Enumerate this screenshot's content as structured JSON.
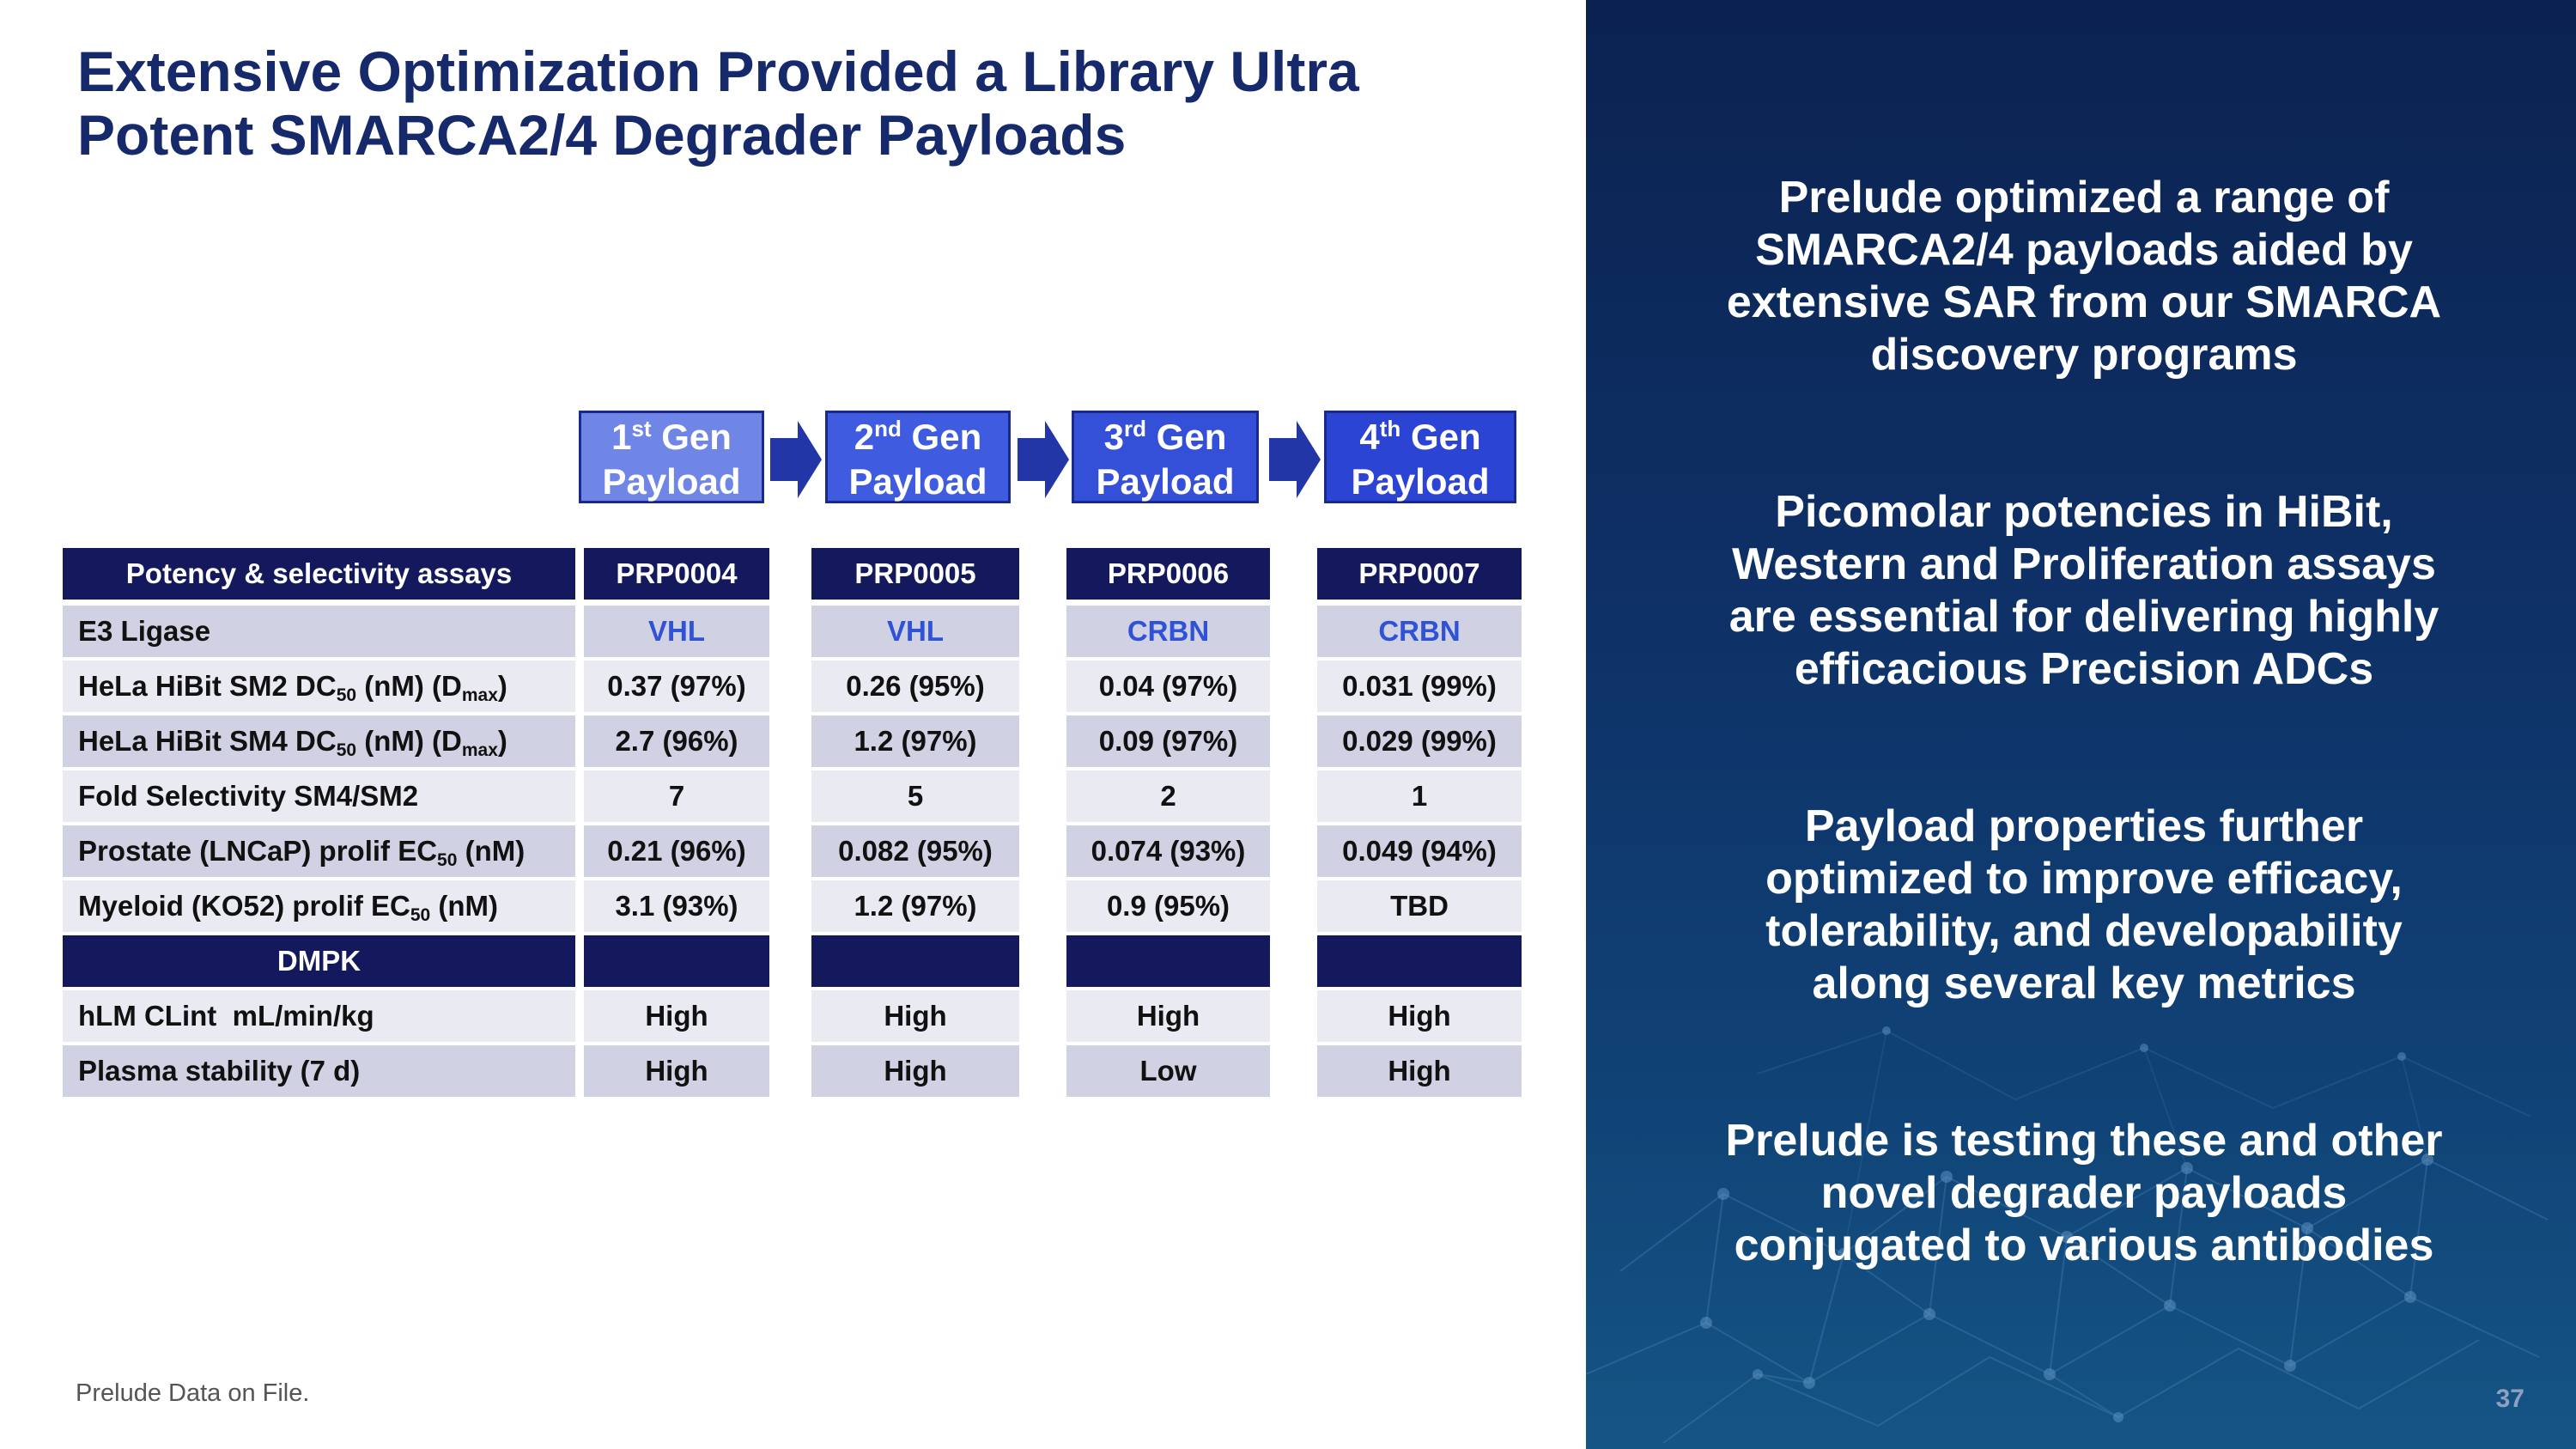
{
  "title": {
    "line1": "Extensive Optimization Provided a Library Ultra",
    "line2": "Potent SMARCA2/4 Degrader Payloads"
  },
  "generations": [
    {
      "ord": "1",
      "sup": "st",
      "gen": "Gen",
      "payload": "Payload",
      "fill": "#6f86e6"
    },
    {
      "ord": "2",
      "sup": "nd",
      "gen": "Gen",
      "payload": "Payload",
      "fill": "#3f5ce0"
    },
    {
      "ord": "3",
      "sup": "rd",
      "gen": "Gen",
      "payload": "Payload",
      "fill": "#3550d8"
    },
    {
      "ord": "4",
      "sup": "th",
      "gen": "Gen",
      "payload": "Payload",
      "fill": "#2c44d4"
    }
  ],
  "table": {
    "header_label": "Potency & selectivity assays",
    "compounds": [
      "PRP0004",
      "PRP0005",
      "PRP0006",
      "PRP0007"
    ],
    "e3": {
      "label": "E3 Ligase",
      "values": [
        "VHL",
        "VHL",
        "CRBN",
        "CRBN"
      ]
    },
    "sm2": {
      "pre": "HeLa HiBit SM2 DC",
      "sub": "50",
      "mid": " (nM) (D",
      "sub2": "max",
      "post": ")",
      "values": [
        "0.37 (97%)",
        "0.26 (95%)",
        "0.04 (97%)",
        "0.031 (99%)"
      ]
    },
    "sm4": {
      "pre": "HeLa HiBit SM4 DC",
      "sub": "50",
      "mid": " (nM) (D",
      "sub2": "max",
      "post": ")",
      "values": [
        "2.7 (96%)",
        "1.2 (97%)",
        "0.09 (97%)",
        "0.029 (99%)"
      ]
    },
    "fold": {
      "label": "Fold Selectivity SM4/SM2",
      "values": [
        "7",
        "5",
        "2",
        "1"
      ]
    },
    "prostate": {
      "pre": "Prostate (LNCaP) prolif EC",
      "sub": "50",
      "post": " (nM)",
      "values": [
        "0.21 (96%)",
        "0.082 (95%)",
        "0.074 (93%)",
        "0.049 (94%)"
      ]
    },
    "myeloid": {
      "pre": "Myeloid (KO52) prolif EC",
      "sub": "50",
      "post": " (nM)",
      "values": [
        "3.1 (93%)",
        "1.2 (97%)",
        "0.9 (95%)",
        "TBD"
      ]
    },
    "dmpk_label": "DMPK",
    "hlm": {
      "label": "hLM CLint  mL/min/kg",
      "values": [
        "High",
        "High",
        "High",
        "High"
      ]
    },
    "plasma": {
      "label": "Plasma stability (7 d)",
      "values": [
        "High",
        "High",
        "Low",
        "High"
      ]
    }
  },
  "footnote": "Prelude Data on File.",
  "bullets": [
    {
      "lines": [
        "Prelude optimized a range of",
        "SMARCA2/4 payloads aided by",
        "extensive SAR from our SMARCA",
        "discovery programs"
      ]
    },
    {
      "lines": [
        "Picomolar potencies in HiBit,",
        "Western and Proliferation assays",
        "are essential for delivering highly",
        "efficacious Precision ADCs"
      ]
    },
    {
      "lines": [
        "Payload properties further",
        "optimized to improve efficacy,",
        "tolerability, and developability",
        "along several key metrics"
      ]
    },
    {
      "lines": [
        "Prelude is testing these and other",
        "novel degrader payloads",
        "conjugated to various antibodies"
      ]
    }
  ],
  "page_number": "37"
}
